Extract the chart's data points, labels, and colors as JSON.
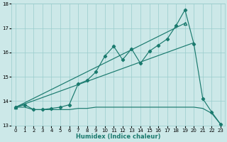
{
  "xlabel": "Humidex (Indice chaleur)",
  "xlim": [
    -0.5,
    23.5
  ],
  "ylim": [
    13,
    18
  ],
  "xticks": [
    0,
    1,
    2,
    3,
    4,
    5,
    6,
    7,
    8,
    9,
    10,
    11,
    12,
    13,
    14,
    15,
    16,
    17,
    18,
    19,
    20,
    21,
    22,
    23
  ],
  "yticks": [
    13,
    14,
    15,
    16,
    17,
    18
  ],
  "bg_color": "#cce8e8",
  "line_color": "#1a7a6e",
  "grid_color": "#99cccc",
  "line_zigzag_x": [
    0,
    1,
    2,
    3,
    4,
    5,
    6,
    7,
    8,
    9,
    10,
    11,
    12,
    13,
    14,
    15,
    16,
    17,
    18,
    19,
    20,
    21,
    22,
    23
  ],
  "line_zigzag_y": [
    13.75,
    13.85,
    13.65,
    13.65,
    13.7,
    13.75,
    13.85,
    14.7,
    14.85,
    15.2,
    15.85,
    16.25,
    15.7,
    16.15,
    15.55,
    16.05,
    16.3,
    16.55,
    17.1,
    17.75,
    16.35,
    14.1,
    13.55,
    13.05
  ],
  "line_trend1_x": [
    0,
    19
  ],
  "line_trend1_y": [
    13.75,
    17.2
  ],
  "line_trend2_x": [
    0,
    20
  ],
  "line_trend2_y": [
    13.75,
    16.4
  ],
  "line_flat_x": [
    0,
    1,
    2,
    3,
    4,
    5,
    6,
    7,
    8,
    9,
    10,
    11,
    12,
    13,
    14,
    15,
    16,
    17,
    18,
    19,
    20,
    21,
    22,
    23
  ],
  "line_flat_y": [
    13.75,
    13.75,
    13.65,
    13.65,
    13.65,
    13.65,
    13.65,
    13.7,
    13.7,
    13.75,
    13.75,
    13.75,
    13.75,
    13.75,
    13.75,
    13.75,
    13.75,
    13.75,
    13.75,
    13.75,
    13.75,
    13.7,
    13.5,
    13.05
  ]
}
